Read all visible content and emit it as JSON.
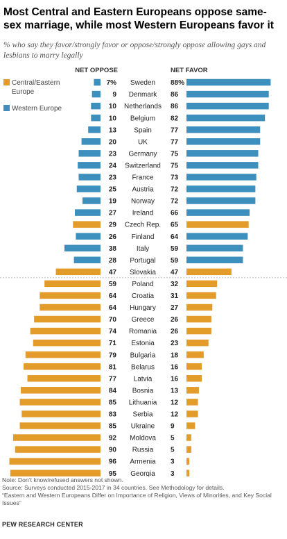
{
  "title": "Most Central and Eastern Europeans oppose same-sex marriage, while most Western Europeans favor it",
  "subtitle": "% who say they favor/strongly favor or oppose/strongly oppose allowing gays and lesbians to marry legally",
  "chart_data": {
    "type": "bar",
    "column_headers": {
      "oppose": "NET OPPOSE",
      "favor": "NET FAVOR"
    },
    "legend": [
      {
        "label": "Central/Eastern Europe",
        "color": "#e39c2a"
      },
      {
        "label": "Western Europe",
        "color": "#3d8fbd"
      }
    ],
    "colors": {
      "central_eastern": "#e39c2a",
      "western": "#3d8fbd"
    },
    "percent_suffix_first_row": "%",
    "countries": [
      {
        "name": "Sweden",
        "oppose": 7,
        "favor": 88,
        "region": "western"
      },
      {
        "name": "Denmark",
        "oppose": 9,
        "favor": 86,
        "region": "western"
      },
      {
        "name": "Netherlands",
        "oppose": 10,
        "favor": 86,
        "region": "western"
      },
      {
        "name": "Belgium",
        "oppose": 10,
        "favor": 82,
        "region": "western"
      },
      {
        "name": "Spain",
        "oppose": 13,
        "favor": 77,
        "region": "western"
      },
      {
        "name": "UK",
        "oppose": 20,
        "favor": 77,
        "region": "western"
      },
      {
        "name": "Germany",
        "oppose": 23,
        "favor": 75,
        "region": "western"
      },
      {
        "name": "Switzerland",
        "oppose": 24,
        "favor": 75,
        "region": "western"
      },
      {
        "name": "France",
        "oppose": 23,
        "favor": 73,
        "region": "western"
      },
      {
        "name": "Austria",
        "oppose": 25,
        "favor": 72,
        "region": "western"
      },
      {
        "name": "Norway",
        "oppose": 19,
        "favor": 72,
        "region": "western"
      },
      {
        "name": "Ireland",
        "oppose": 27,
        "favor": 66,
        "region": "western"
      },
      {
        "name": "Czech Rep.",
        "oppose": 29,
        "favor": 65,
        "region": "central_eastern"
      },
      {
        "name": "Finland",
        "oppose": 26,
        "favor": 64,
        "region": "western"
      },
      {
        "name": "Italy",
        "oppose": 38,
        "favor": 59,
        "region": "western"
      },
      {
        "name": "Portugal",
        "oppose": 28,
        "favor": 59,
        "region": "western"
      },
      {
        "name": "Slovakia",
        "oppose": 47,
        "favor": 47,
        "region": "central_eastern"
      },
      {
        "name": "Poland",
        "oppose": 59,
        "favor": 32,
        "region": "central_eastern"
      },
      {
        "name": "Croatia",
        "oppose": 64,
        "favor": 31,
        "region": "central_eastern"
      },
      {
        "name": "Hungary",
        "oppose": 64,
        "favor": 27,
        "region": "central_eastern"
      },
      {
        "name": "Greece",
        "oppose": 70,
        "favor": 26,
        "region": "central_eastern"
      },
      {
        "name": "Romania",
        "oppose": 74,
        "favor": 26,
        "region": "central_eastern"
      },
      {
        "name": "Estonia",
        "oppose": 71,
        "favor": 23,
        "region": "central_eastern"
      },
      {
        "name": "Bulgaria",
        "oppose": 79,
        "favor": 18,
        "region": "central_eastern"
      },
      {
        "name": "Belarus",
        "oppose": 81,
        "favor": 16,
        "region": "central_eastern"
      },
      {
        "name": "Latvia",
        "oppose": 77,
        "favor": 16,
        "region": "central_eastern"
      },
      {
        "name": "Bosnia",
        "oppose": 84,
        "favor": 13,
        "region": "central_eastern"
      },
      {
        "name": "Lithuania",
        "oppose": 85,
        "favor": 12,
        "region": "central_eastern"
      },
      {
        "name": "Serbia",
        "oppose": 83,
        "favor": 12,
        "region": "central_eastern"
      },
      {
        "name": "Ukraine",
        "oppose": 85,
        "favor": 9,
        "region": "central_eastern"
      },
      {
        "name": "Moldova",
        "oppose": 92,
        "favor": 5,
        "region": "central_eastern"
      },
      {
        "name": "Russia",
        "oppose": 90,
        "favor": 5,
        "region": "central_eastern"
      },
      {
        "name": "Armenia",
        "oppose": 96,
        "favor": 3,
        "region": "central_eastern"
      },
      {
        "name": "Georgia",
        "oppose": 95,
        "favor": 3,
        "region": "central_eastern"
      }
    ],
    "divider_after_index": 16
  },
  "notes": {
    "note": "Note: Don’t know/refused answers not shown.",
    "source": "Source: Surveys conducted 2015-2017 in 34 countries. See Methodology for details.",
    "report": "“Eastern and Western Europeans Differ on Importance of Religion, Views of Minorities, and Key Social Issues”"
  },
  "organization": "PEW RESEARCH CENTER"
}
